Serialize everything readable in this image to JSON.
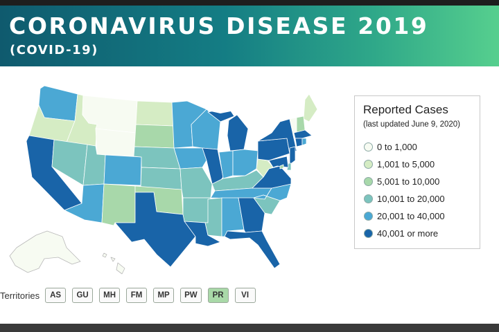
{
  "banner": {
    "title": "CORONAVIRUS DISEASE 2019",
    "subtitle": "(COVID-19)"
  },
  "legend": {
    "title": "Reported Cases",
    "subtitle": "(last updated June 9, 2020)",
    "items": [
      {
        "label": "0 to 1,000",
        "color": "#f7fbf2"
      },
      {
        "label": "1,001 to 5,000",
        "color": "#d5ecc4"
      },
      {
        "label": "5,001 to 10,000",
        "color": "#a8d8aa"
      },
      {
        "label": "10,001 to 20,000",
        "color": "#7cc4be"
      },
      {
        "label": "20,001 to 40,000",
        "color": "#4ba8d4"
      },
      {
        "label": "40,001 or more",
        "color": "#1964a8"
      }
    ]
  },
  "territories": {
    "label": "Territories",
    "buttons": [
      "AS",
      "GU",
      "MH",
      "FM",
      "MP",
      "PW",
      "PR",
      "VI"
    ]
  },
  "map": {
    "lake_color": "#ffffff",
    "states": [
      {
        "id": "WA",
        "bin": 4
      },
      {
        "id": "OR",
        "bin": 1
      },
      {
        "id": "CA",
        "bin": 5
      },
      {
        "id": "ID",
        "bin": 1
      },
      {
        "id": "NV",
        "bin": 3
      },
      {
        "id": "MT",
        "bin": 0
      },
      {
        "id": "WY",
        "bin": 0
      },
      {
        "id": "UT",
        "bin": 3
      },
      {
        "id": "AZ",
        "bin": 4
      },
      {
        "id": "CO",
        "bin": 4
      },
      {
        "id": "NM",
        "bin": 2
      },
      {
        "id": "ND",
        "bin": 1
      },
      {
        "id": "SD",
        "bin": 2
      },
      {
        "id": "NE",
        "bin": 3
      },
      {
        "id": "KS",
        "bin": 3
      },
      {
        "id": "OK",
        "bin": 2
      },
      {
        "id": "TX",
        "bin": 5
      },
      {
        "id": "MN",
        "bin": 4
      },
      {
        "id": "IA",
        "bin": 4
      },
      {
        "id": "MO",
        "bin": 3
      },
      {
        "id": "AR",
        "bin": 3
      },
      {
        "id": "LA",
        "bin": 5
      },
      {
        "id": "WI",
        "bin": 4
      },
      {
        "id": "IL",
        "bin": 5
      },
      {
        "id": "MI",
        "bin": 5
      },
      {
        "id": "IN",
        "bin": 4
      },
      {
        "id": "OH",
        "bin": 4
      },
      {
        "id": "KY",
        "bin": 3
      },
      {
        "id": "TN",
        "bin": 4
      },
      {
        "id": "MS",
        "bin": 3
      },
      {
        "id": "AL",
        "bin": 4
      },
      {
        "id": "GA",
        "bin": 5
      },
      {
        "id": "FL",
        "bin": 5
      },
      {
        "id": "SC",
        "bin": 3
      },
      {
        "id": "NC",
        "bin": 4
      },
      {
        "id": "VA",
        "bin": 5
      },
      {
        "id": "WV",
        "bin": 1
      },
      {
        "id": "PA",
        "bin": 5
      },
      {
        "id": "NY",
        "bin": 5
      },
      {
        "id": "ME",
        "bin": 1
      },
      {
        "id": "VT",
        "bin": 0
      },
      {
        "id": "NH",
        "bin": 2
      },
      {
        "id": "MA",
        "bin": 5
      },
      {
        "id": "CT",
        "bin": 5
      },
      {
        "id": "RI",
        "bin": 4
      },
      {
        "id": "NJ",
        "bin": 5
      },
      {
        "id": "DE",
        "bin": 3
      },
      {
        "id": "MD",
        "bin": 5
      },
      {
        "id": "DC",
        "bin": 2
      },
      {
        "id": "AK",
        "bin": 0
      },
      {
        "id": "HI",
        "bin": 0
      }
    ]
  }
}
